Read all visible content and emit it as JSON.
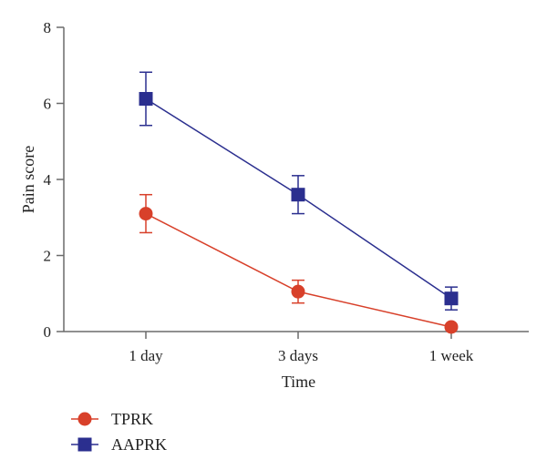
{
  "chart_data": {
    "type": "line",
    "title": "",
    "xlabel": "Time",
    "ylabel": "Pain score",
    "categories": [
      "1 day",
      "3 days",
      "1 week"
    ],
    "ylim": [
      0,
      8
    ],
    "yticks": [
      0,
      2,
      4,
      6,
      8
    ],
    "grid": false,
    "legend": "bottom-left",
    "series": [
      {
        "name": "TPRK",
        "color": "#d8402a",
        "marker": "circle",
        "values": [
          3.1,
          1.05,
          0.12
        ],
        "error": [
          0.5,
          0.3,
          0.05
        ]
      },
      {
        "name": "AAPRK",
        "color": "#2b2f8f",
        "marker": "square",
        "values": [
          6.12,
          3.6,
          0.87
        ],
        "error": [
          0.7,
          0.5,
          0.3
        ]
      }
    ]
  }
}
